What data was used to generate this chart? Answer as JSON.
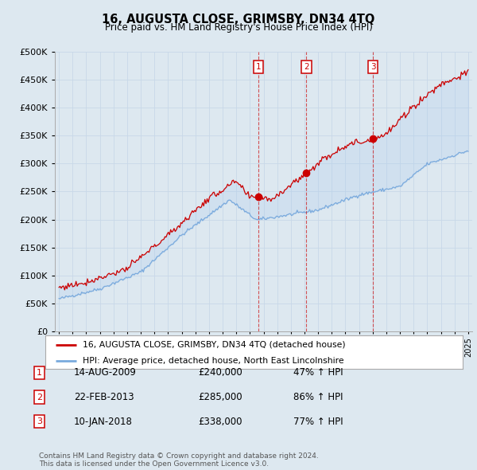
{
  "title": "16, AUGUSTA CLOSE, GRIMSBY, DN34 4TQ",
  "subtitle": "Price paid vs. HM Land Registry's House Price Index (HPI)",
  "red_label": "16, AUGUSTA CLOSE, GRIMSBY, DN34 4TQ (detached house)",
  "blue_label": "HPI: Average price, detached house, North East Lincolnshire",
  "transactions": [
    {
      "num": 1,
      "date": "14-AUG-2009",
      "date_val": 2009.618,
      "price": 240000,
      "pct": "47%",
      "dir": "↑"
    },
    {
      "num": 2,
      "date": "22-FEB-2013",
      "date_val": 2013.143,
      "price": 285000,
      "pct": "86%",
      "dir": "↑"
    },
    {
      "num": 3,
      "date": "10-JAN-2018",
      "date_val": 2018.027,
      "price": 338000,
      "pct": "77%",
      "dir": "↑"
    }
  ],
  "footer1": "Contains HM Land Registry data © Crown copyright and database right 2024.",
  "footer2": "This data is licensed under the Open Government Licence v3.0.",
  "ylim": [
    0,
    500000
  ],
  "xlim_start": 1994.7,
  "xlim_end": 2025.3,
  "bg_color": "#dde8f0",
  "grid_color": "#c8d8e8",
  "red_color": "#cc0000",
  "blue_color": "#7aaadd"
}
